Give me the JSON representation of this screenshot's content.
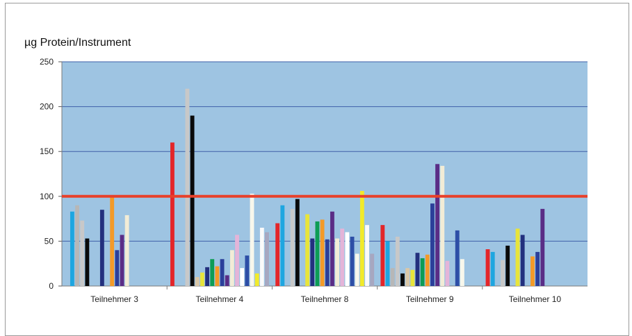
{
  "chart_data": {
    "type": "bar",
    "title": "",
    "ylabel": "µg Protein/Instrument",
    "xlabel": "",
    "ylim": [
      0,
      250
    ],
    "yticks": [
      0,
      50,
      100,
      150,
      200,
      250
    ],
    "categories": [
      "Teilnehmer 3",
      "Teilnehmer 4",
      "Teilnehmer 8",
      "Teilnehmer 9",
      "Teilnehmer 10"
    ],
    "reference_line": {
      "value": 100,
      "color": "#e8402a"
    },
    "plot_background": "#9ec4e2",
    "gridline_color": "#3f5fa8",
    "grid": true,
    "legend": "none",
    "series": [
      {
        "values": [
          null,
          160,
          70,
          68,
          41
        ]
      },
      {
        "values": [
          83,
          null,
          90,
          50,
          38
        ]
      },
      {
        "values": [
          90,
          null,
          null,
          20,
          null
        ]
      },
      {
        "values": [
          73,
          220,
          86,
          55,
          29
        ]
      },
      {
        "values": [
          53,
          190,
          97,
          14,
          45
        ]
      },
      {
        "values": [
          null,
          10,
          null,
          20,
          null
        ]
      },
      {
        "values": [
          null,
          15,
          80,
          18,
          64
        ]
      },
      {
        "values": [
          85,
          21,
          53,
          37,
          57
        ]
      },
      {
        "values": [
          null,
          30,
          72,
          31,
          null
        ]
      },
      {
        "values": [
          101,
          22,
          74,
          35,
          33
        ]
      },
      {
        "values": [
          40,
          30,
          52,
          92,
          38
        ]
      },
      {
        "values": [
          57,
          12,
          83,
          136,
          86
        ]
      },
      {
        "values": [
          79,
          40,
          53,
          134,
          null
        ]
      },
      {
        "values": [
          null,
          57,
          64,
          28,
          null
        ]
      },
      {
        "values": [
          null,
          20,
          60,
          null,
          null
        ]
      },
      {
        "values": [
          null,
          34,
          55,
          62,
          null
        ]
      },
      {
        "values": [
          null,
          103,
          36,
          30,
          null
        ]
      },
      {
        "values": [
          null,
          14,
          106,
          null,
          null
        ]
      },
      {
        "values": [
          null,
          65,
          68,
          null,
          null
        ]
      },
      {
        "values": [
          null,
          60,
          36,
          null,
          null
        ]
      }
    ],
    "series_colors": [
      "#e3262a",
      "#1ea6e0",
      "#b7b7b7",
      "#c8c8c8",
      "#0a0a0a",
      "#d9c7a8",
      "#e8e43a",
      "#23307e",
      "#0d9c55",
      "#f39a28",
      "#2b3f9a",
      "#5a2d86",
      "#f2ecd6",
      "#e4b4d8",
      "#ffffff",
      "#2d4ea6",
      "#f7f7ec",
      "#f1ea2a",
      "#fafafa",
      "#a7a7c0"
    ]
  }
}
